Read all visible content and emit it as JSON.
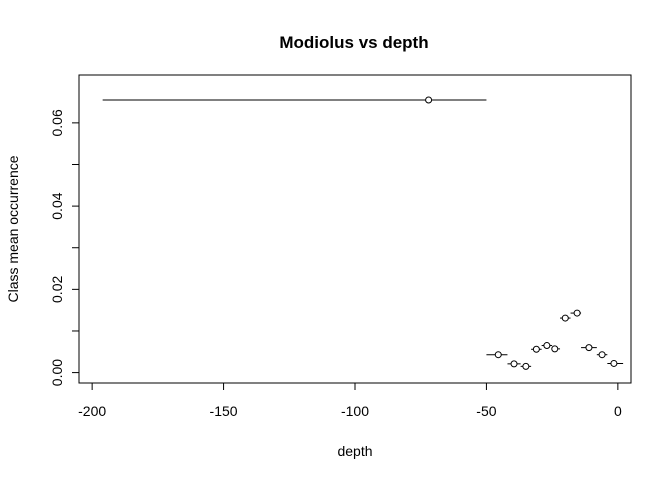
{
  "chart_data": {
    "type": "scatter",
    "title": "Modiolus vs depth",
    "xlabel": "depth",
    "ylabel": "Class mean occurrence",
    "xlim": [
      -205,
      5
    ],
    "ylim": [
      -0.0025,
      0.0715
    ],
    "x_ticks": [
      -200,
      -150,
      -100,
      -50,
      0
    ],
    "x_tick_labels": [
      "-200",
      "-150",
      "-100",
      "-50",
      "0"
    ],
    "y_ticks": [
      0.0,
      0.01,
      0.02,
      0.03,
      0.04,
      0.05,
      0.06
    ],
    "y_tick_labels": [
      "0.00",
      "",
      "0.02",
      "",
      "0.04",
      "",
      "0.06"
    ],
    "grid": false,
    "legend": "none",
    "points": [
      {
        "x": -72.0,
        "y": 0.0655,
        "x_min": -196.0,
        "x_max": -50.0
      },
      {
        "x": -45.5,
        "y": 0.0043,
        "x_min": -50.0,
        "x_max": -42.0
      },
      {
        "x": -39.5,
        "y": 0.0021,
        "x_min": -42.0,
        "x_max": -37.0
      },
      {
        "x": -35.0,
        "y": 0.0015,
        "x_min": -37.0,
        "x_max": -33.0
      },
      {
        "x": -31.0,
        "y": 0.0056,
        "x_min": -33.0,
        "x_max": -29.0
      },
      {
        "x": -27.0,
        "y": 0.0065,
        "x_min": -29.0,
        "x_max": -25.0
      },
      {
        "x": -24.0,
        "y": 0.0057,
        "x_min": -25.0,
        "x_max": -22.0
      },
      {
        "x": -20.0,
        "y": 0.0131,
        "x_min": -22.0,
        "x_max": -18.0
      },
      {
        "x": -15.5,
        "y": 0.0143,
        "x_min": -18.0,
        "x_max": -14.0
      },
      {
        "x": -11.0,
        "y": 0.006,
        "x_min": -14.0,
        "x_max": -8.0
      },
      {
        "x": -6.0,
        "y": 0.0043,
        "x_min": -8.0,
        "x_max": -4.0
      },
      {
        "x": -1.5,
        "y": 0.0022,
        "x_min": -4.0,
        "x_max": 2.0
      }
    ]
  }
}
